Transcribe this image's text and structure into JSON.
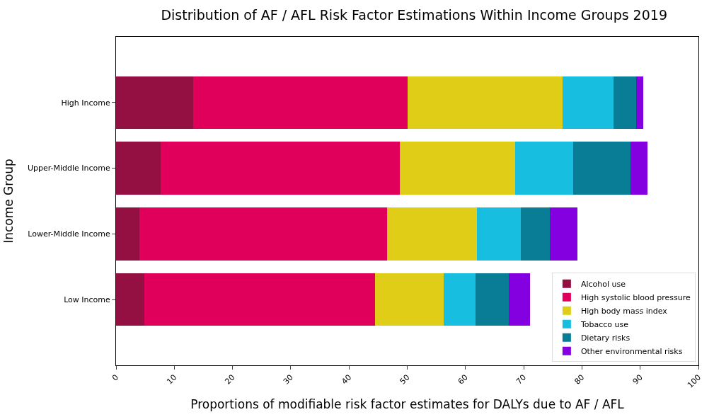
{
  "chart_data": {
    "type": "bar",
    "orientation": "horizontal",
    "stacked": true,
    "title": "Distribution of AF / AFL Risk Factor Estimations Within Income Groups 2019",
    "xlabel": "Proportions of modifiable risk factor estimates for DALYs due to AF / AFL",
    "ylabel": "Income Group",
    "categories": [
      "High Income",
      "Upper-Middle Income",
      "Lower-Middle Income",
      "Low Income"
    ],
    "series": [
      {
        "name": "Alcohol use",
        "color": "#941042",
        "values": [
          13.2,
          7.6,
          4.0,
          4.8
        ]
      },
      {
        "name": "High systolic blood pressure",
        "color": "#e0005c",
        "values": [
          36.8,
          41.1,
          42.5,
          39.7
        ]
      },
      {
        "name": "High body mass index",
        "color": "#e0cd18",
        "values": [
          26.7,
          19.8,
          15.5,
          11.8
        ]
      },
      {
        "name": "Tobacco use",
        "color": "#18bee0",
        "values": [
          8.7,
          10.0,
          7.5,
          5.4
        ]
      },
      {
        "name": "Dietary risks",
        "color": "#0a7d96",
        "values": [
          3.9,
          9.8,
          5.0,
          5.7
        ]
      },
      {
        "name": "Other environmental risks",
        "color": "#8500e0",
        "values": [
          1.2,
          3.0,
          4.7,
          3.7
        ]
      }
    ],
    "xlim": [
      0,
      100
    ],
    "xticks": [
      0,
      10,
      20,
      30,
      40,
      50,
      60,
      70,
      80,
      90,
      100
    ],
    "legend": "bottom right"
  }
}
